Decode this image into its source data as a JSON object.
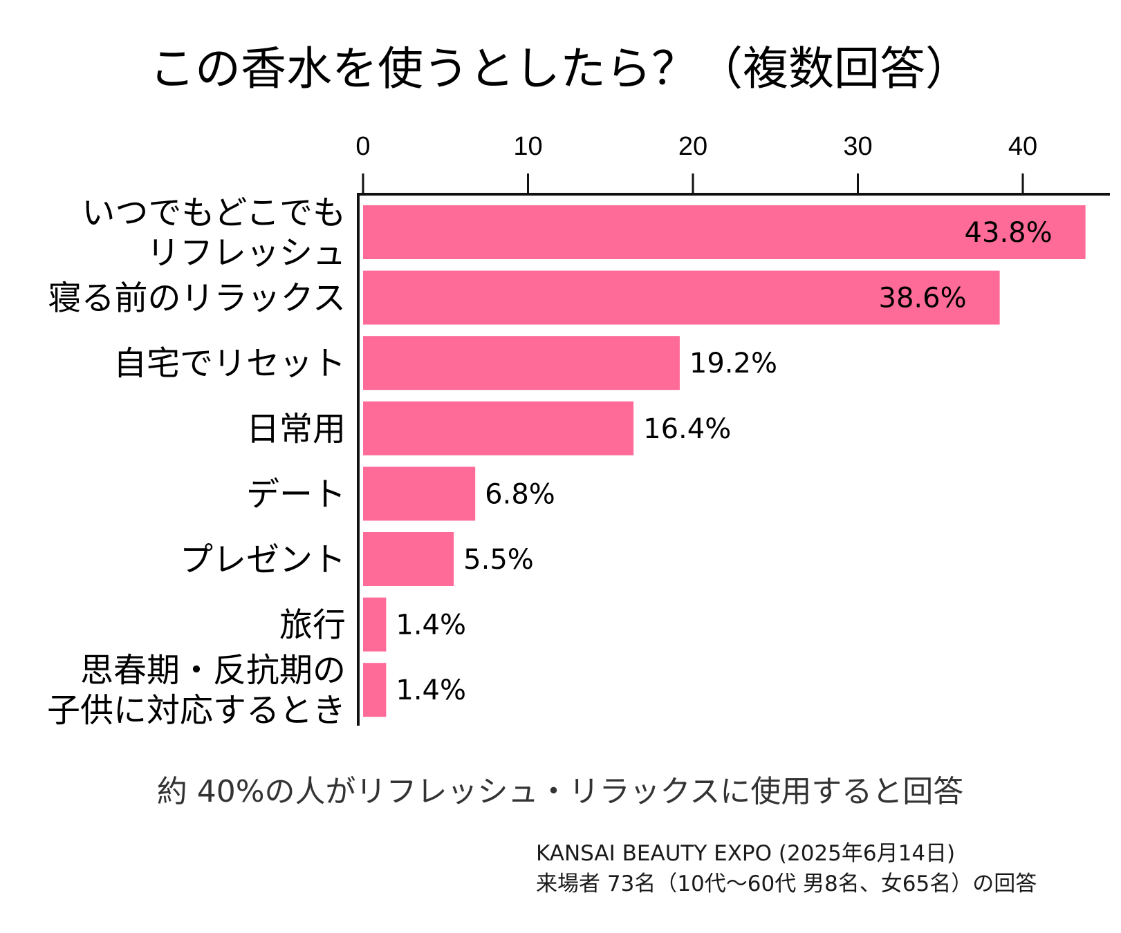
{
  "chart_data": {
    "type": "bar",
    "orientation": "horizontal",
    "title": "この香水を使うとしたら？（複数回答）",
    "xlabel": "",
    "ylabel": "",
    "xlim": [
      0,
      45
    ],
    "xticks": [
      0,
      10,
      20,
      30,
      40
    ],
    "grid": false,
    "bar_color": "#ff6b99",
    "categories": [
      [
        "いつでもどこでも",
        "リフレッシュ"
      ],
      [
        "寝る前のリラックス"
      ],
      [
        "自宅でリセット"
      ],
      [
        "日常用"
      ],
      [
        "デート"
      ],
      [
        "プレゼント"
      ],
      [
        "旅行"
      ],
      [
        "思春期・反抗期の",
        "子供に対応するとき"
      ]
    ],
    "values": [
      43.8,
      38.6,
      19.2,
      16.4,
      6.8,
      5.5,
      1.4,
      1.4
    ],
    "value_labels": [
      "43.8%",
      "38.6%",
      "19.2%",
      "16.4%",
      "6.8%",
      "5.5%",
      "1.4%",
      "1.4%"
    ],
    "annotation": "約 40%の人がリフレッシュ・リラックスに使用すると回答",
    "source": [
      "KANSAI BEAUTY EXPO (2025年6月14日)",
      "来場者 73名（10代〜60代 男8名、女65名）の回答"
    ]
  }
}
